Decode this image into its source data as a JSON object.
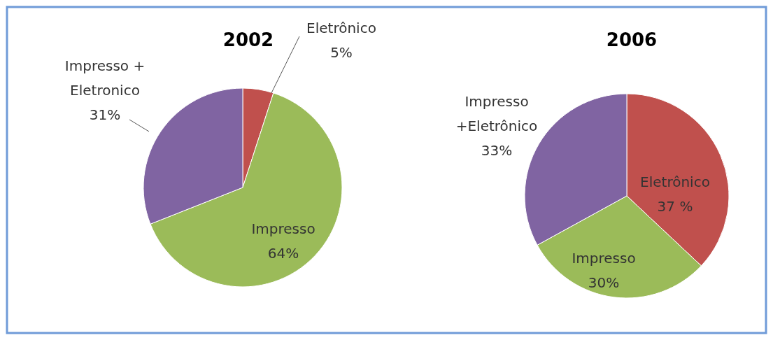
{
  "chart_data": [
    {
      "type": "pie",
      "title": "2002",
      "categories": [
        "Eletrônico",
        "Impresso",
        "Impresso +\nEletronico"
      ],
      "values": [
        5,
        64,
        31
      ],
      "colors": [
        "#c0504d",
        "#9bbb59",
        "#8064a2"
      ],
      "value_labels": [
        "5%",
        "64%",
        "31%"
      ]
    },
    {
      "type": "pie",
      "title": "2006",
      "categories": [
        "Eletrônico",
        "Impresso",
        "Impresso\n+Eletrônico"
      ],
      "values": [
        37,
        30,
        33
      ],
      "colors": [
        "#c0504d",
        "#9bbb59",
        "#8064a2"
      ],
      "value_labels": [
        "37 %",
        "30%",
        "33%"
      ]
    }
  ]
}
